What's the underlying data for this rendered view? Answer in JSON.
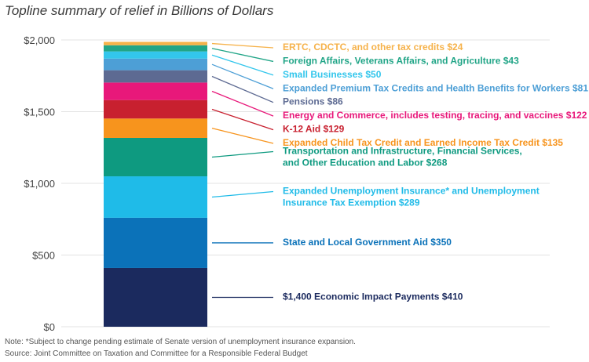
{
  "chart_data": {
    "type": "stacked-bar",
    "title": "Topline summary of relief in Billions of Dollars",
    "ylim": [
      0,
      2000
    ],
    "yticks": [
      {
        "value": 0,
        "label": "$0"
      },
      {
        "value": 500,
        "label": "$500"
      },
      {
        "value": 1000,
        "label": "$1,000"
      },
      {
        "value": 1500,
        "label": "$1,500"
      },
      {
        "value": 2000,
        "label": "$2,000"
      }
    ],
    "grid": true,
    "segments": [
      {
        "label": [
          "$1,400 Economic Impact Payments $410"
        ],
        "value": 410,
        "color": "#1b2a5e"
      },
      {
        "label": [
          "State and Local Government Aid $350"
        ],
        "value": 350,
        "color": "#0b72b9"
      },
      {
        "label": [
          "Expanded Unemployment Insurance* and Unemployment",
          "Insurance Tax Exemption $289"
        ],
        "value": 289,
        "color": "#1fbbe8"
      },
      {
        "label": [
          "Transportation and Infrastructure, Financial Services,",
          "and Other Education and Labor $268"
        ],
        "value": 268,
        "color": "#0e9a80"
      },
      {
        "label": [
          "Expanded Child Tax Credit and Earned Income Tax Credit $135"
        ],
        "value": 135,
        "color": "#f7941d"
      },
      {
        "label": [
          "K-12 Aid $129"
        ],
        "value": 129,
        "color": "#c8202f"
      },
      {
        "label": [
          "Energy and Commerce, includes testing, tracing, and vaccines $122"
        ],
        "value": 122,
        "color": "#e8187a"
      },
      {
        "label": [
          "Pensions $86"
        ],
        "value": 86,
        "color": "#5d6a92"
      },
      {
        "label": [
          "Expanded Premium Tax Credits and Health Benefits for Workers $81"
        ],
        "value": 81,
        "color": "#4d9fd6"
      },
      {
        "label": [
          "Small Businesses $50"
        ],
        "value": 50,
        "color": "#33c6ec"
      },
      {
        "label": [
          "Foreign Affairs, Veterans Affairs, and Agriculture $43"
        ],
        "value": 43,
        "color": "#21a587"
      },
      {
        "label": [
          "ERTC, CDCTC, and other tax credits $24"
        ],
        "value": 24,
        "color": "#f6b24a"
      }
    ]
  },
  "notes": {
    "note": "Note: *Subject to change pending estimate of Senate version of unemployment insurance expansion.",
    "source": "Source: Joint Committee on Taxation and Committee for a Responsible Federal Budget"
  }
}
